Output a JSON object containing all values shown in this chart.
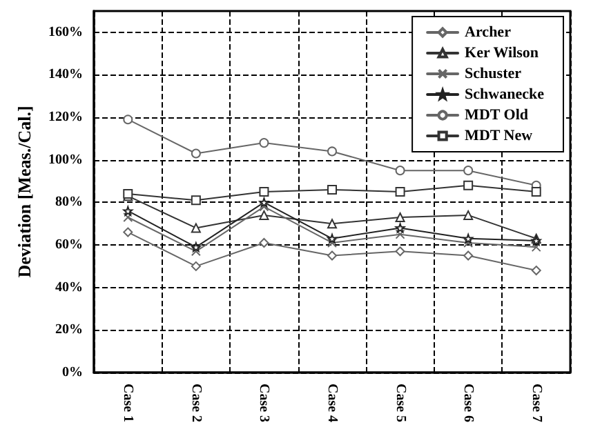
{
  "chart_data": {
    "type": "line",
    "ylabel": "Deviation [Meas./Cal.]",
    "categories": [
      "Case 1",
      "Case 2",
      "Case 3",
      "Case 4",
      "Case 5",
      "Case 6",
      "Case 7"
    ],
    "series": [
      {
        "name": "Archer",
        "color": "#666666",
        "marker": "diamond",
        "values": [
          66,
          50,
          61,
          55,
          57,
          55,
          48
        ]
      },
      {
        "name": "Ker Wilson",
        "color": "#333333",
        "marker": "triangle",
        "values": [
          83,
          68,
          74,
          70,
          73,
          74,
          63
        ]
      },
      {
        "name": "Schuster",
        "color": "#666666",
        "marker": "cross",
        "values": [
          73,
          57,
          78,
          61,
          65,
          61,
          59
        ]
      },
      {
        "name": "Schwanecke",
        "color": "#222222",
        "marker": "star",
        "values": [
          76,
          59,
          80,
          63,
          68,
          63,
          62
        ]
      },
      {
        "name": "MDT Old",
        "color": "#666666",
        "marker": "circle",
        "values": [
          119,
          103,
          108,
          104,
          95,
          95,
          88
        ]
      },
      {
        "name": "MDT New",
        "color": "#333333",
        "marker": "square",
        "values": [
          84,
          81,
          85,
          86,
          85,
          88,
          85
        ]
      }
    ],
    "ylim": [
      0,
      170
    ],
    "yticks": [
      {
        "value": 0,
        "label": "0%"
      },
      {
        "value": 20,
        "label": "20%"
      },
      {
        "value": 40,
        "label": "40%"
      },
      {
        "value": 60,
        "label": "60%"
      },
      {
        "value": 80,
        "label": "80%"
      },
      {
        "value": 100,
        "label": "100%"
      },
      {
        "value": 120,
        "label": "120%"
      },
      {
        "value": 140,
        "label": "140%"
      },
      {
        "value": 160,
        "label": "160%"
      }
    ],
    "grid": true,
    "legend": "top right",
    "line_style": "solid"
  }
}
